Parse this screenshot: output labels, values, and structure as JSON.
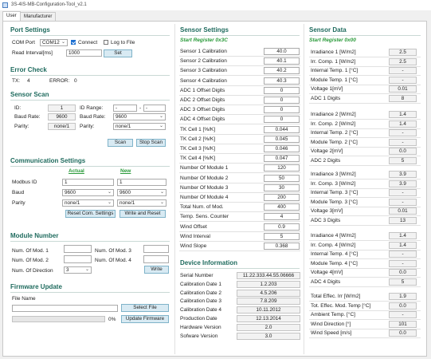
{
  "window": {
    "title": "3S-4IS-MB-Configuration-Tool_v2.1"
  },
  "tabs": [
    {
      "label": "User",
      "active": true
    },
    {
      "label": "Manufacturer",
      "active": false
    }
  ],
  "port_settings": {
    "title": "Port Settings",
    "com_port_label": "COM Port",
    "com_port_value": "COM12",
    "connect_label": "Connect",
    "connect_checked": true,
    "log_label": "Log to File",
    "log_checked": false,
    "read_interval_label": "Read Interval[ms]",
    "read_interval_value": "1000",
    "set_button": "Set"
  },
  "error_check": {
    "title": "Error Check",
    "tx_label": "TX:",
    "tx_value": "4",
    "error_label": "ERROR:",
    "error_value": "0"
  },
  "sensor_scan": {
    "title": "Sensor Scan",
    "id_label": "ID:",
    "id_value": "1",
    "id_range_label": "ID Range:",
    "id_range_from": "-",
    "id_range_to": "-",
    "baud_label": "Baud Rate:",
    "baud_value": "9600",
    "baud_label2": "Baud Rate:",
    "baud_select": "9600",
    "parity_label": "Parity:",
    "parity_value": "none/1",
    "parity_label2": "Parity:",
    "parity_select": "none/1",
    "scan_button": "Scan",
    "stop_button": "Stop Scan"
  },
  "communication": {
    "title": "Communication Settings",
    "actual_label": "Actual",
    "new_label": "New",
    "modbus_label": "Modbus ID",
    "modbus_actual": "1",
    "modbus_new": "1",
    "baud_label": "Baud",
    "baud_actual": "9600",
    "baud_new": "9600",
    "parity_label": "Parity",
    "parity_actual": "none/1",
    "parity_new": "none/1",
    "reset_button": "Reset Com. Settings",
    "write_reset_button": "Write and Reset"
  },
  "module_number": {
    "title": "Module Number",
    "mod1_label": "Num. Of Mod. 1",
    "mod1_value": "",
    "mod2_label": "Num. Of Mod. 2",
    "mod2_value": "",
    "mod3_label": "Num. Of Mod. 3",
    "mod3_value": "",
    "mod4_label": "Num. Of Mod. 4",
    "mod4_value": "",
    "direction_label": "Num. Of Direction",
    "direction_value": "3",
    "write_button": "Write"
  },
  "firmware": {
    "title": "Firmware Update",
    "file_name_label": "File Name",
    "file_name_value": "",
    "progress_text": "0%",
    "progress_percent": 0,
    "select_button": "Select File",
    "update_button": "Update Firmware"
  },
  "sensor_settings": {
    "title": "Sensor Settings",
    "start_register": "Start Register 0x3C",
    "rows": [
      {
        "label": "Sensor 1 Calibration",
        "value": "40.0"
      },
      {
        "label": "Sensor 2 Calibration",
        "value": "40.1"
      },
      {
        "label": "Sensor 3 Calibration",
        "value": "40.2"
      },
      {
        "label": "Sensor 4 Calibration",
        "value": "40.3"
      },
      {
        "label": "ADC 1 Offset Digits",
        "value": "0"
      },
      {
        "label": "ADC 2 Offset Digits",
        "value": "0"
      },
      {
        "label": "ADC 3 Offset Digits",
        "value": "0"
      },
      {
        "label": "ADC 4 Offset Digits",
        "value": "0"
      },
      {
        "label": "TK Cell 1 [%/K]",
        "value": "0.044"
      },
      {
        "label": "TK Cell 2 [%/K]",
        "value": "0.045"
      },
      {
        "label": "TK Cell 3 [%/K]",
        "value": "0.046"
      },
      {
        "label": "TK Cell 4 [%/K]",
        "value": "0.047"
      },
      {
        "label": "Number Of Module 1",
        "value": "120"
      },
      {
        "label": "Number Of Module 2",
        "value": "50"
      },
      {
        "label": "Number Of Module 3",
        "value": "30"
      },
      {
        "label": "Number Of Module 4",
        "value": "200"
      },
      {
        "label": "Total Num. of Mod.",
        "value": "400"
      },
      {
        "label": "Temp. Sens. Counter",
        "value": "4"
      },
      {
        "label": "Wind Offset",
        "value": "0.9"
      },
      {
        "label": "Wind Interval",
        "value": "5"
      },
      {
        "label": "Wind Slope",
        "value": "0.368"
      }
    ]
  },
  "device_info": {
    "title": "Device Information",
    "rows": [
      {
        "label": "Serial Number",
        "value": "11.22.333.44.55.06666"
      },
      {
        "label": "Calibration Date 1",
        "value": "1.2.203"
      },
      {
        "label": "Calibration Date 2",
        "value": "4.5.206"
      },
      {
        "label": "Calibration Date 3",
        "value": "7.8.209"
      },
      {
        "label": "Calibration Date 4",
        "value": "10.11.2012"
      },
      {
        "label": "Production Date",
        "value": "12.13.2014"
      },
      {
        "label": "Hardware Version",
        "value": "2.0"
      },
      {
        "label": "Sofware Version",
        "value": "3.0"
      }
    ]
  },
  "sensor_data": {
    "title": "Sensor Data",
    "start_register": "Start Register 0x00",
    "groups": [
      [
        {
          "label": "Irradiance 1 [W/m2]",
          "value": "2.5"
        },
        {
          "label": "Irr. Comp. 1 [W/m2]",
          "value": "2.5"
        },
        {
          "label": "Internal Temp. 1 [°C]",
          "value": "-"
        },
        {
          "label": "Module Temp. 1 [°C]",
          "value": "-"
        },
        {
          "label": "Voltage 1[mV]",
          "value": "0.01"
        },
        {
          "label": "ADC 1 Digits",
          "value": "8"
        }
      ],
      [
        {
          "label": "Irradiance 2 [W/m2]",
          "value": "1.4"
        },
        {
          "label": "Irr. Comp. 2 [W/m2]",
          "value": "1.4"
        },
        {
          "label": "Internal Temp. 2 [°C]",
          "value": "-"
        },
        {
          "label": "Module Temp. 2 [°C]",
          "value": "-"
        },
        {
          "label": "Voltage 2[mV]",
          "value": "0.0"
        },
        {
          "label": "ADC 2 Digits",
          "value": "5"
        }
      ],
      [
        {
          "label": "Irradiance 3 [W/m2]",
          "value": "3.9"
        },
        {
          "label": "Irr. Comp. 3 [W/m2]",
          "value": "3.9"
        },
        {
          "label": "Internal Temp. 3 [°C]",
          "value": "-"
        },
        {
          "label": "Module Temp. 3 [°C]",
          "value": "-"
        },
        {
          "label": "Voltage 3[mV]",
          "value": "0.01"
        },
        {
          "label": "ADC 3 Digits",
          "value": "13"
        }
      ],
      [
        {
          "label": "Irradiance 4 [W/m2]",
          "value": "1.4"
        },
        {
          "label": "Irr. Comp. 4 [W/m2]",
          "value": "1.4"
        },
        {
          "label": "Internal Temp. 4 [°C]",
          "value": "-"
        },
        {
          "label": "Module Temp. 4 [°C]",
          "value": "-"
        },
        {
          "label": "Voltage 4[mV]",
          "value": "0.0"
        },
        {
          "label": "ADC 4 Digits",
          "value": "5"
        }
      ],
      [
        {
          "label": "Total Effec. Irr [W/m2]",
          "value": "1.9"
        },
        {
          "label": "Tot. Effec. Mod. Temp [°C]",
          "value": "0.0"
        },
        {
          "label": "Ambient Temp. [°C]",
          "value": "-"
        },
        {
          "label": "Wind Direction [°]",
          "value": "101"
        },
        {
          "label": "Wind Speed [m/s]",
          "value": "0.0"
        }
      ]
    ]
  },
  "colors": {
    "section_title": "#1f6b5e",
    "subtitle_green": "#2a9a3a",
    "button_bg": "#d8eaf3",
    "button_border": "#7fb3c9",
    "checkbox_checked": "#1c6fd1"
  }
}
